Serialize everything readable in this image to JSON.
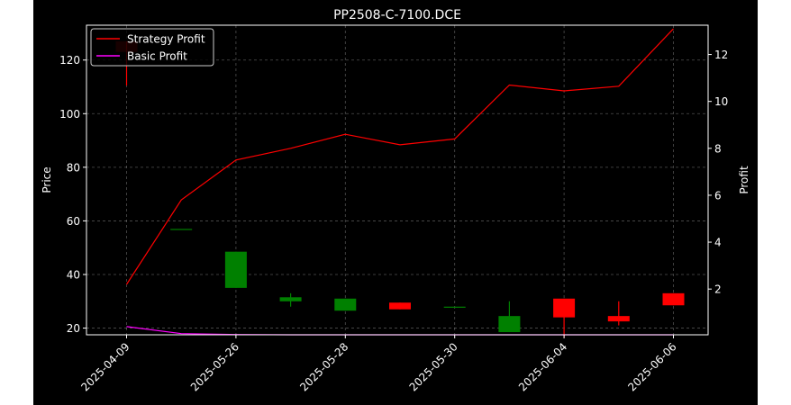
{
  "chart_data": {
    "type": "candlestick+line",
    "title": "PP2508-C-7100.DCE",
    "xlabel": "",
    "ylabel_left": "Price",
    "ylabel_right": "Profit",
    "x_tick_labels": [
      "2025-04-09",
      "2025-05-26",
      "2025-05-28",
      "2025-05-30",
      "2025-06-04",
      "2025-06-06"
    ],
    "x_tick_positions": [
      0,
      2,
      4,
      6,
      8,
      10
    ],
    "ylim_left": [
      17.5,
      133
    ],
    "yticks_left": [
      20,
      40,
      60,
      80,
      100,
      120
    ],
    "ylim_right": [
      0.05,
      13.25
    ],
    "yticks_right": [
      2,
      4,
      6,
      8,
      10,
      12
    ],
    "grid": true,
    "legend_position": "top-left",
    "background": "#000000",
    "up_color": "#008000",
    "down_color": "#ff0000",
    "candles": [
      {
        "x": 0,
        "open": 127.0,
        "high": 127.0,
        "low": 110.5,
        "close": 123.0
      },
      {
        "x": 1,
        "open": 57.0,
        "high": 57.0,
        "low": 57.0,
        "close": 57.0
      },
      {
        "x": 2,
        "open": 35.0,
        "high": 48.5,
        "low": 35.0,
        "close": 48.5
      },
      {
        "x": 3,
        "open": 30.0,
        "high": 33.0,
        "low": 28.0,
        "close": 31.5
      },
      {
        "x": 4,
        "open": 26.5,
        "high": 31.0,
        "low": 26.5,
        "close": 31.0
      },
      {
        "x": 5,
        "open": 29.5,
        "high": 29.5,
        "low": 27.0,
        "close": 27.0
      },
      {
        "x": 6,
        "open": 28.0,
        "high": 28.0,
        "low": 28.0,
        "close": 28.0
      },
      {
        "x": 7,
        "open": 18.5,
        "high": 30.0,
        "low": 18.5,
        "close": 24.5
      },
      {
        "x": 8,
        "open": 31.0,
        "high": 31.0,
        "low": 16.5,
        "close": 24.0
      },
      {
        "x": 9,
        "open": 24.5,
        "high": 30.0,
        "low": 21.0,
        "close": 22.5
      },
      {
        "x": 10,
        "open": 33.0,
        "high": 33.0,
        "low": 28.5,
        "close": 28.5
      }
    ],
    "series": [
      {
        "name": "Strategy Profit",
        "color": "#ff0000",
        "axis": "right",
        "x": [
          0,
          1,
          2,
          3,
          4,
          5,
          6,
          7,
          8,
          9,
          10
        ],
        "values": [
          2.2,
          5.8,
          7.5,
          8.0,
          8.6,
          8.15,
          8.4,
          10.7,
          10.45,
          10.65,
          13.1
        ]
      },
      {
        "name": "Basic Profit",
        "color": "#ff00ff",
        "axis": "right",
        "x": [
          0,
          1,
          2,
          3,
          4,
          5,
          6,
          7,
          8,
          9,
          10
        ],
        "values": [
          0.4,
          0.1,
          0.06,
          0.05,
          0.05,
          0.05,
          0.05,
          0.05,
          0.05,
          0.05,
          0.05
        ]
      }
    ]
  }
}
